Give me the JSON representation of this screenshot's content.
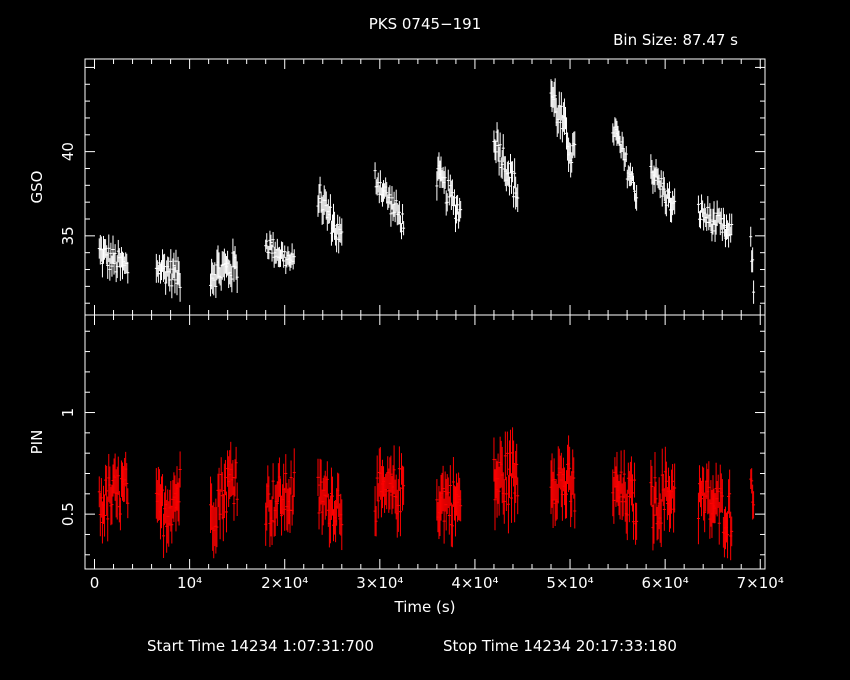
{
  "title": "PKS 0745−191",
  "bin_size": "Bin Size: 87.47 s",
  "footer": {
    "start": "Start Time 14234  1:07:31:700",
    "stop": "Stop Time 14234 20:17:33:180"
  },
  "chart_data": {
    "type": "scatter",
    "xlabel": "Time (s)",
    "xlim": [
      -1000,
      70500
    ],
    "x_ticks": [
      {
        "value": 0,
        "label": "0"
      },
      {
        "value": 10000,
        "label": "10⁴"
      },
      {
        "value": 20000,
        "label": "2×10⁴"
      },
      {
        "value": 30000,
        "label": "3×10⁴"
      },
      {
        "value": 40000,
        "label": "4×10⁴"
      },
      {
        "value": 50000,
        "label": "5×10⁴"
      },
      {
        "value": 60000,
        "label": "6×10⁴"
      },
      {
        "value": 70000,
        "label": "7×10⁴"
      }
    ],
    "panels": [
      {
        "ylabel": "GSO",
        "color": "#ffffff",
        "ylim": [
          30.3,
          45.5
        ],
        "y_ticks": [
          {
            "value": 35,
            "label": "35"
          },
          {
            "value": 40,
            "label": "40"
          }
        ],
        "segments": [
          {
            "x": [
              500,
              3500
            ],
            "y": [
              34.0,
              33.0
            ],
            "err": 0.8
          },
          {
            "x": [
              6500,
              9000
            ],
            "y": [
              33.2,
              32.6
            ],
            "err": 0.8
          },
          {
            "x": [
              12200,
              15000
            ],
            "y": [
              32.8,
              33.2
            ],
            "err": 0.9
          },
          {
            "x": [
              18000,
              21000
            ],
            "y": [
              34.6,
              33.3
            ],
            "err": 0.6
          },
          {
            "x": [
              23500,
              26000
            ],
            "y": [
              37.5,
              34.7
            ],
            "err": 0.8
          },
          {
            "x": [
              29500,
              32500
            ],
            "y": [
              38.5,
              35.7
            ],
            "err": 0.7
          },
          {
            "x": [
              36000,
              38500
            ],
            "y": [
              38.6,
              36.3
            ],
            "err": 0.8
          },
          {
            "x": [
              42000,
              44500
            ],
            "y": [
              41.0,
              37.5
            ],
            "err": 0.9
          },
          {
            "x": [
              48000,
              50500
            ],
            "y": [
              43.5,
              39.5
            ],
            "err": 1.0
          },
          {
            "x": [
              54500,
              57000
            ],
            "y": [
              41.5,
              37.5
            ],
            "err": 0.7
          },
          {
            "x": [
              58500,
              61000
            ],
            "y": [
              39.0,
              36.5
            ],
            "err": 0.7
          },
          {
            "x": [
              63500,
              67000
            ],
            "y": [
              36.5,
              35.0
            ],
            "err": 0.7
          },
          {
            "x": [
              69000,
              69300
            ],
            "y": [
              35.0,
              32.0
            ],
            "err": 0.7
          }
        ]
      },
      {
        "ylabel": "PIN",
        "color": "#ff0000",
        "ylim": [
          0.23,
          1.48
        ],
        "y_ticks": [
          {
            "value": 0.5,
            "label": "0.5"
          },
          {
            "value": 1,
            "label": "1"
          }
        ],
        "segments": [
          {
            "x": [
              500,
              3500
            ],
            "y": [
              0.55,
              0.62
            ],
            "err": 0.12
          },
          {
            "x": [
              6500,
              9000
            ],
            "y": [
              0.48,
              0.62
            ],
            "err": 0.13
          },
          {
            "x": [
              12200,
              15000
            ],
            "y": [
              0.52,
              0.7
            ],
            "err": 0.13
          },
          {
            "x": [
              18000,
              21000
            ],
            "y": [
              0.55,
              0.6
            ],
            "err": 0.12
          },
          {
            "x": [
              23500,
              26000
            ],
            "y": [
              0.58,
              0.55
            ],
            "err": 0.12
          },
          {
            "x": [
              29500,
              32500
            ],
            "y": [
              0.58,
              0.62
            ],
            "err": 0.12
          },
          {
            "x": [
              36000,
              38500
            ],
            "y": [
              0.58,
              0.55
            ],
            "err": 0.12
          },
          {
            "x": [
              42000,
              44500
            ],
            "y": [
              0.65,
              0.7
            ],
            "err": 0.14
          },
          {
            "x": [
              48000,
              50500
            ],
            "y": [
              0.7,
              0.6
            ],
            "err": 0.13
          },
          {
            "x": [
              54500,
              57000
            ],
            "y": [
              0.62,
              0.55
            ],
            "err": 0.12
          },
          {
            "x": [
              58500,
              61000
            ],
            "y": [
              0.55,
              0.62
            ],
            "err": 0.13
          },
          {
            "x": [
              63500,
              67000
            ],
            "y": [
              0.58,
              0.5
            ],
            "err": 0.12
          },
          {
            "x": [
              69000,
              69300
            ],
            "y": [
              0.65,
              0.62
            ],
            "err": 0.08
          }
        ]
      }
    ]
  }
}
